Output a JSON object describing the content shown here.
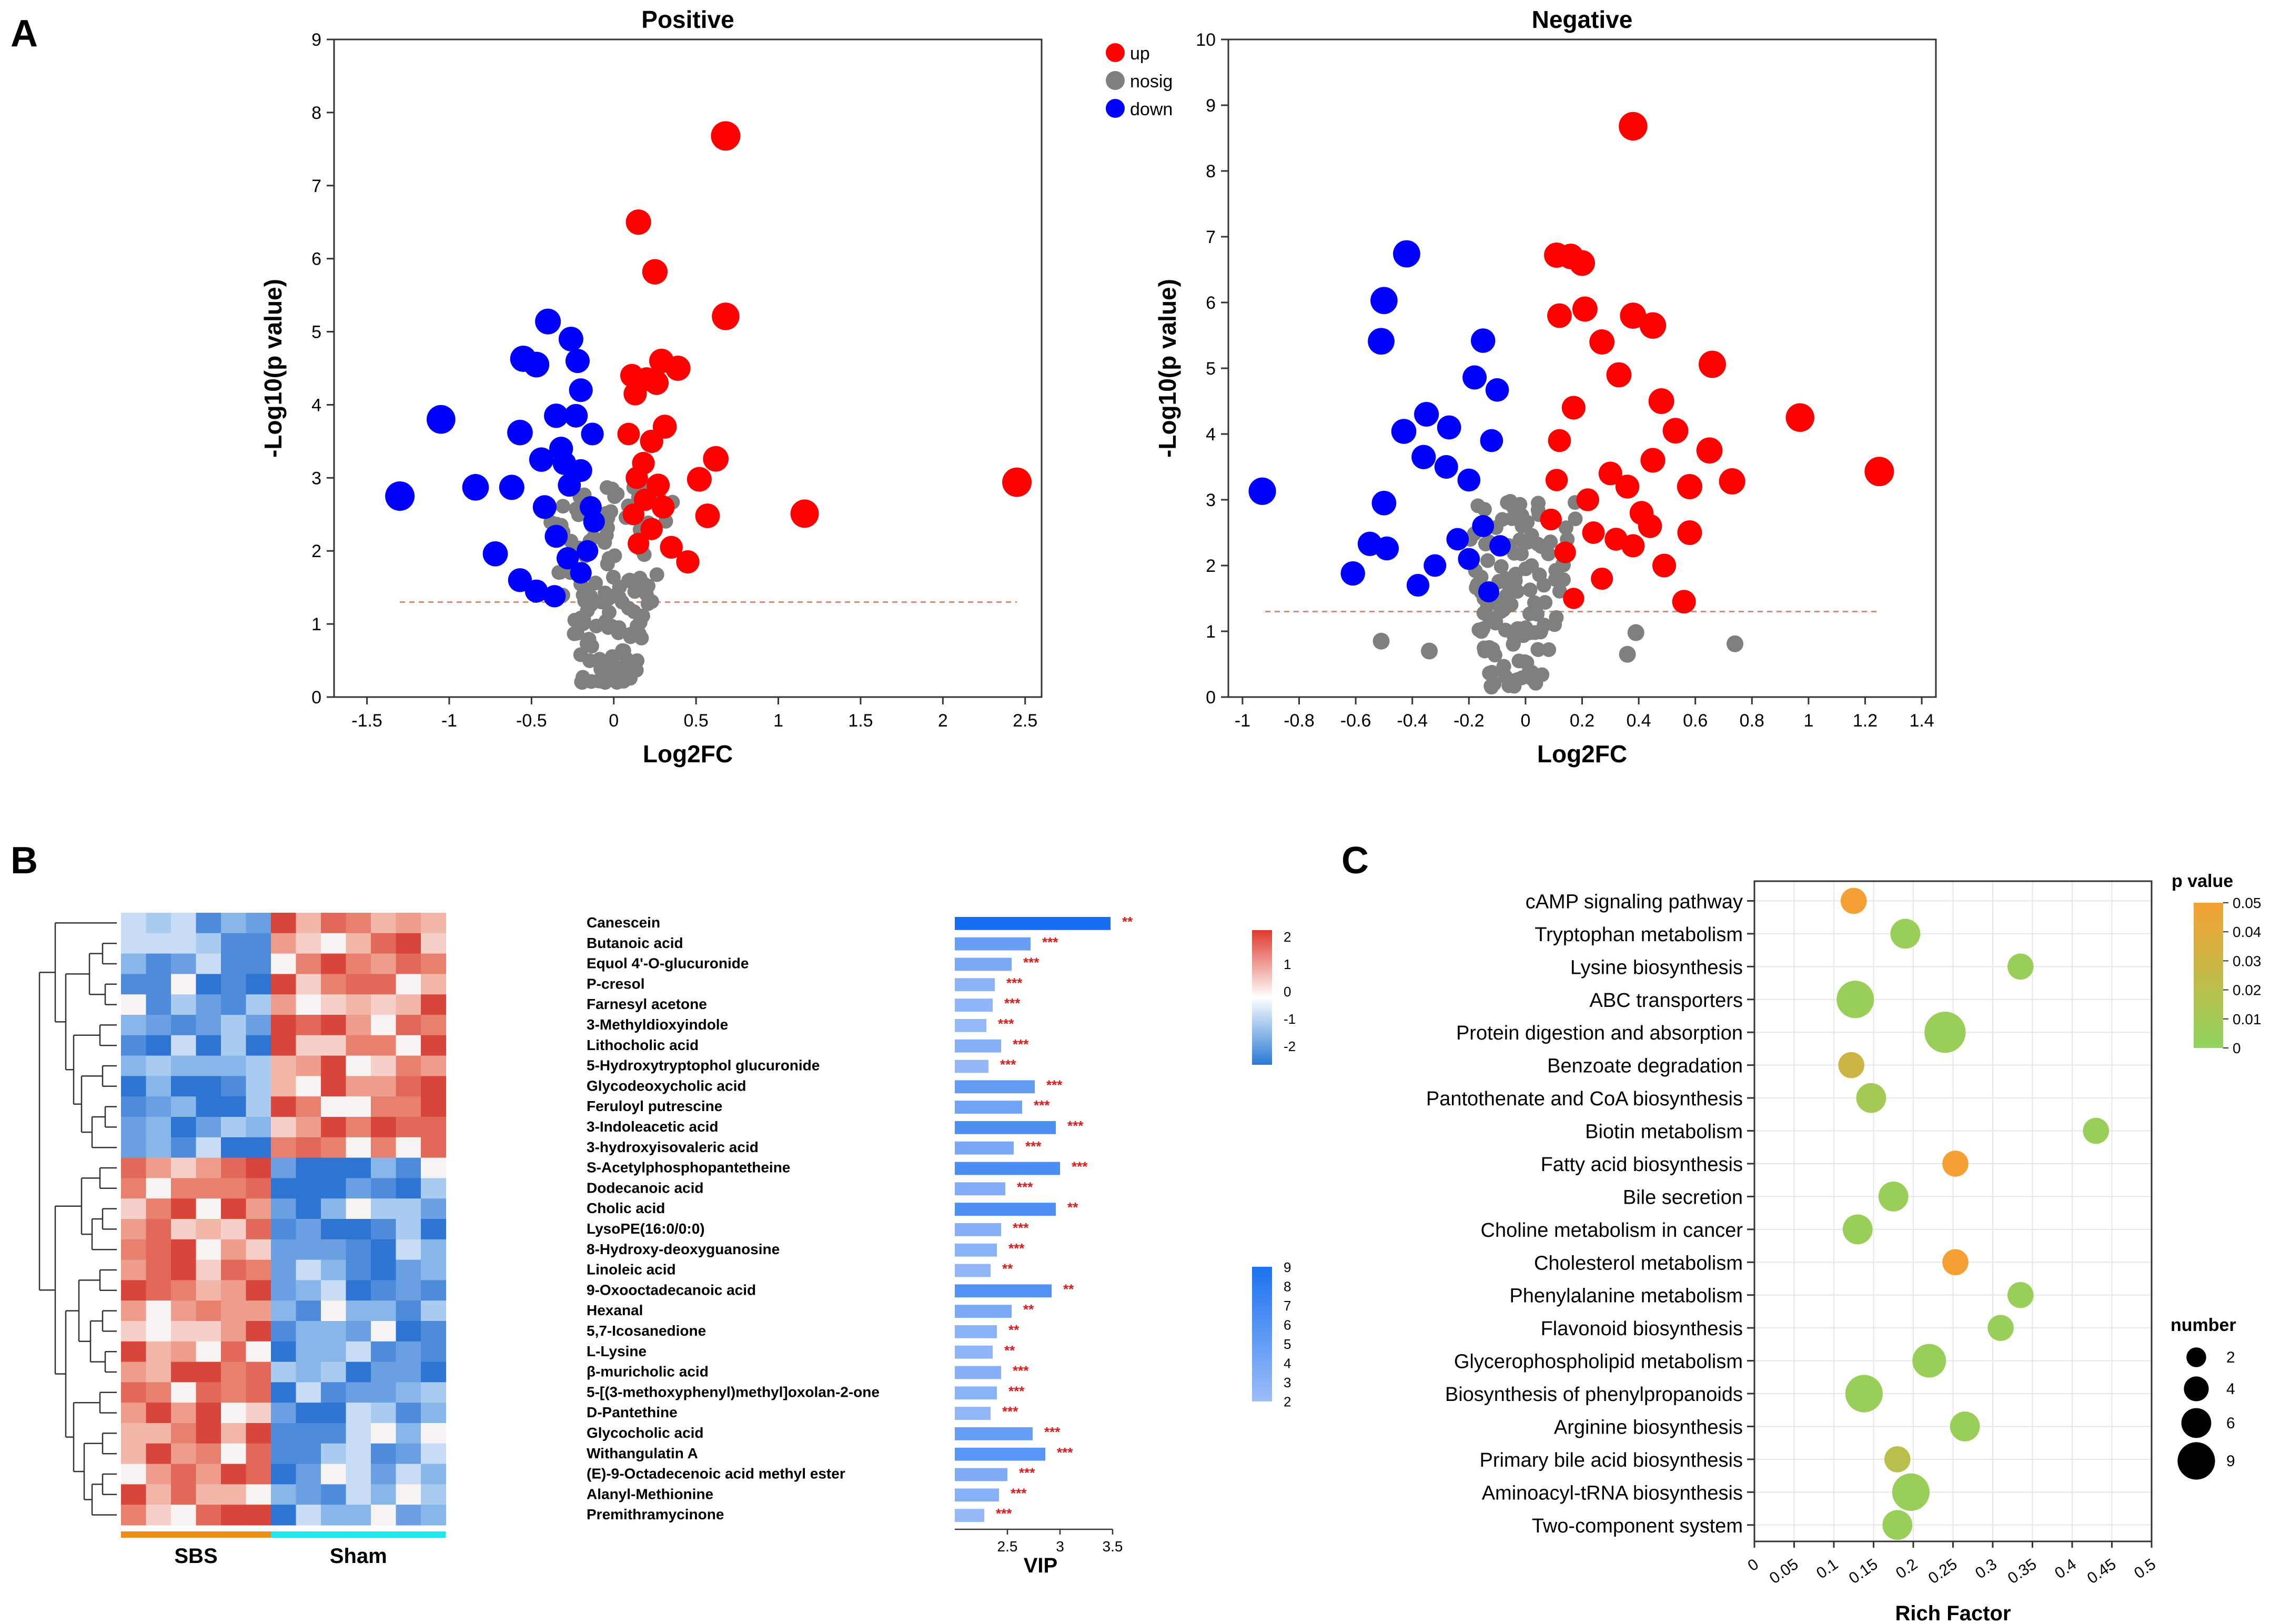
{
  "panel_labels": {
    "a": "A",
    "b": "B",
    "c": "C"
  },
  "legend_volcano": [
    {
      "label": "up",
      "color": "#ff0000"
    },
    {
      "label": "nosig",
      "color": "#7f7f7f"
    },
    {
      "label": "down",
      "color": "#0000ff"
    }
  ],
  "chart_data": [
    {
      "id": "volcano-positive",
      "type": "scatter",
      "title": "Positive",
      "xlabel": "Log2FC",
      "ylabel": "-Log10(p value)",
      "xlim": [
        -1.7,
        2.6
      ],
      "ylim": [
        0,
        9
      ],
      "xticks": [
        -1.5,
        -1,
        -0.5,
        0,
        0.5,
        1,
        1.5,
        2,
        2.5
      ],
      "yticks": [
        0,
        1,
        2,
        3,
        4,
        5,
        6,
        7,
        8,
        9
      ],
      "threshold_y": 1.3,
      "threshold_x_range": [
        -1.3,
        2.45
      ],
      "highlight_points": {
        "up": [
          [
            0.68,
            7.68
          ],
          [
            0.15,
            6.5
          ],
          [
            0.25,
            5.82
          ],
          [
            0.68,
            5.21
          ],
          [
            2.45,
            2.94
          ],
          [
            1.16,
            2.51
          ],
          [
            0.62,
            3.26
          ],
          [
            0.57,
            2.48
          ],
          [
            0.35,
            2.05
          ],
          [
            0.45,
            1.85
          ],
          [
            0.52,
            2.98
          ],
          [
            0.29,
            4.6
          ],
          [
            0.39,
            4.5
          ],
          [
            0.11,
            4.4
          ],
          [
            0.2,
            4.35
          ],
          [
            0.26,
            4.3
          ],
          [
            0.31,
            3.7
          ],
          [
            0.23,
            3.5
          ],
          [
            0.18,
            3.2
          ],
          [
            0.14,
            3.0
          ],
          [
            0.27,
            2.9
          ],
          [
            0.19,
            2.7
          ],
          [
            0.12,
            2.5
          ],
          [
            0.23,
            2.3
          ],
          [
            0.15,
            2.1
          ],
          [
            0.3,
            2.6
          ],
          [
            0.09,
            3.6
          ],
          [
            0.13,
            4.15
          ]
        ],
        "down": [
          [
            -1.3,
            2.75
          ],
          [
            -1.05,
            3.8
          ],
          [
            -0.84,
            2.87
          ],
          [
            -0.72,
            1.96
          ],
          [
            -0.62,
            2.87
          ],
          [
            -0.57,
            3.62
          ],
          [
            -0.55,
            4.63
          ],
          [
            -0.47,
            4.55
          ],
          [
            -0.4,
            5.14
          ],
          [
            -0.57,
            1.6
          ],
          [
            -0.35,
            3.85
          ],
          [
            -0.26,
            4.9
          ],
          [
            -0.22,
            4.6
          ],
          [
            -0.2,
            4.2
          ],
          [
            -0.32,
            3.4
          ],
          [
            -0.27,
            2.9
          ],
          [
            -0.2,
            3.1
          ],
          [
            -0.14,
            2.6
          ],
          [
            -0.35,
            2.2
          ],
          [
            -0.28,
            1.9
          ],
          [
            -0.2,
            1.7
          ],
          [
            -0.16,
            2.0
          ],
          [
            -0.12,
            2.4
          ],
          [
            -0.42,
            2.6
          ],
          [
            -0.47,
            1.45
          ],
          [
            -0.36,
            1.38
          ],
          [
            -0.13,
            3.6
          ],
          [
            -0.23,
            3.85
          ],
          [
            -0.44,
            3.25
          ],
          [
            -0.3,
            3.2
          ]
        ]
      },
      "nosig_cloud": {
        "x_range": [
          -0.45,
          0.38
        ],
        "y_range": [
          0.2,
          2.9
        ],
        "count": 140,
        "seed": 11
      }
    },
    {
      "id": "volcano-negative",
      "type": "scatter",
      "title": "Negative",
      "xlabel": "Log2FC",
      "ylabel": "-Log10(p value)",
      "xlim": [
        -1.05,
        1.45
      ],
      "ylim": [
        0,
        10
      ],
      "xticks": [
        -1,
        -0.8,
        -0.6,
        -0.4,
        -0.2,
        0,
        0.2,
        0.4,
        0.6,
        0.8,
        1,
        1.2,
        1.4
      ],
      "yticks": [
        0,
        1,
        2,
        3,
        4,
        5,
        6,
        7,
        8,
        9,
        10
      ],
      "threshold_y": 1.3,
      "threshold_x_range": [
        -0.92,
        1.25
      ],
      "highlight_points": {
        "up": [
          [
            0.38,
            8.68
          ],
          [
            0.11,
            6.72
          ],
          [
            0.16,
            6.7
          ],
          [
            0.2,
            6.6
          ],
          [
            0.38,
            5.8
          ],
          [
            0.45,
            5.65
          ],
          [
            0.66,
            5.06
          ],
          [
            0.97,
            4.25
          ],
          [
            1.25,
            3.43
          ],
          [
            0.73,
            3.28
          ],
          [
            0.65,
            3.75
          ],
          [
            0.58,
            2.5
          ],
          [
            0.49,
            2.0
          ],
          [
            0.56,
            1.45
          ],
          [
            0.32,
            2.4
          ],
          [
            0.21,
            5.9
          ],
          [
            0.12,
            5.8
          ],
          [
            0.27,
            5.4
          ],
          [
            0.33,
            4.9
          ],
          [
            0.48,
            4.5
          ],
          [
            0.53,
            4.05
          ],
          [
            0.45,
            3.6
          ],
          [
            0.36,
            3.2
          ],
          [
            0.3,
            3.4
          ],
          [
            0.41,
            2.8
          ],
          [
            0.24,
            2.5
          ],
          [
            0.14,
            2.2
          ],
          [
            0.22,
            3.0
          ],
          [
            0.12,
            3.9
          ],
          [
            0.17,
            4.4
          ],
          [
            0.38,
            2.3
          ],
          [
            0.27,
            1.8
          ],
          [
            0.17,
            1.5
          ],
          [
            0.11,
            3.3
          ],
          [
            0.09,
            2.7
          ],
          [
            0.58,
            3.2
          ],
          [
            0.44,
            2.6
          ]
        ],
        "down": [
          [
            -0.93,
            3.13
          ],
          [
            -0.42,
            6.74
          ],
          [
            -0.5,
            6.03
          ],
          [
            -0.51,
            5.41
          ],
          [
            -0.15,
            5.42
          ],
          [
            -0.18,
            4.86
          ],
          [
            -0.1,
            4.67
          ],
          [
            -0.43,
            4.04
          ],
          [
            -0.35,
            4.3
          ],
          [
            -0.27,
            4.1
          ],
          [
            -0.5,
            2.95
          ],
          [
            -0.55,
            2.33
          ],
          [
            -0.49,
            2.26
          ],
          [
            -0.61,
            1.88
          ],
          [
            -0.38,
            1.7
          ],
          [
            -0.13,
            1.6
          ],
          [
            -0.2,
            2.1
          ],
          [
            -0.15,
            2.6
          ],
          [
            -0.28,
            3.5
          ],
          [
            -0.2,
            3.3
          ],
          [
            -0.24,
            2.4
          ],
          [
            -0.09,
            2.3
          ],
          [
            -0.32,
            2.0
          ],
          [
            -0.12,
            3.9
          ],
          [
            -0.36,
            3.65
          ]
        ]
      },
      "nosig_cloud": {
        "x_range": [
          -0.27,
          0.2
        ],
        "y_range": [
          0.15,
          3.0
        ],
        "count": 130,
        "seed": 23
      },
      "outlier_nosig": [
        [
          -0.51,
          0.85
        ],
        [
          0.74,
          0.81
        ],
        [
          0.39,
          0.98
        ],
        [
          0.36,
          0.65
        ],
        [
          -0.34,
          0.7
        ]
      ]
    },
    {
      "id": "heatmap-vip",
      "type": "heatmap",
      "group_labels": [
        "SBS",
        "Sham"
      ],
      "group_colors": [
        "#ee8c1a",
        "#1fe8ec"
      ],
      "rows": [
        {
          "name": "Canescein",
          "vip": 3.48,
          "sig": "**"
        },
        {
          "name": "Butanoic acid",
          "vip": 2.72,
          "sig": "***"
        },
        {
          "name": "Equol 4'-O-glucuronide",
          "vip": 2.54,
          "sig": "***"
        },
        {
          "name": "P-cresol",
          "vip": 2.38,
          "sig": "***"
        },
        {
          "name": "Farnesyl acetone",
          "vip": 2.36,
          "sig": "***"
        },
        {
          "name": "3-Methyldioxyindole",
          "vip": 2.3,
          "sig": "***"
        },
        {
          "name": "Lithocholic acid",
          "vip": 2.44,
          "sig": "***"
        },
        {
          "name": "5-Hydroxytryptophol glucuronide",
          "vip": 2.32,
          "sig": "***"
        },
        {
          "name": "Glycodeoxycholic acid",
          "vip": 2.76,
          "sig": "***"
        },
        {
          "name": "Feruloyl putrescine",
          "vip": 2.64,
          "sig": "***"
        },
        {
          "name": "3-Indoleacetic acid",
          "vip": 2.96,
          "sig": "***"
        },
        {
          "name": "3-hydroxyisovaleric acid",
          "vip": 2.56,
          "sig": "***"
        },
        {
          "name": "S-Acetylphosphopantetheine",
          "vip": 3.0,
          "sig": "***"
        },
        {
          "name": "Dodecanoic acid",
          "vip": 2.48,
          "sig": "***"
        },
        {
          "name": "Cholic acid",
          "vip": 2.96,
          "sig": "**"
        },
        {
          "name": "LysoPE(16:0/0:0)",
          "vip": 2.44,
          "sig": "***"
        },
        {
          "name": "8-Hydroxy-deoxyguanosine",
          "vip": 2.4,
          "sig": "***"
        },
        {
          "name": "Linoleic acid",
          "vip": 2.34,
          "sig": "**"
        },
        {
          "name": "9-Oxooctadecanoic acid",
          "vip": 2.92,
          "sig": "**"
        },
        {
          "name": "Hexanal",
          "vip": 2.54,
          "sig": "**"
        },
        {
          "name": "5,7-Icosanedione",
          "vip": 2.4,
          "sig": "**"
        },
        {
          "name": "L-Lysine",
          "vip": 2.36,
          "sig": "**"
        },
        {
          "name": "β-muricholic acid",
          "vip": 2.44,
          "sig": "***"
        },
        {
          "name": "5-[(3-methoxyphenyl)methyl]oxolan-2-one",
          "vip": 2.4,
          "sig": "***"
        },
        {
          "name": "D-Pantethine",
          "vip": 2.34,
          "sig": "***"
        },
        {
          "name": "Glycocholic acid",
          "vip": 2.74,
          "sig": "***"
        },
        {
          "name": "Withangulatin A",
          "vip": 2.86,
          "sig": "***"
        },
        {
          "name": "(E)-9-Octadecenoic acid methyl ester",
          "vip": 2.5,
          "sig": "***"
        },
        {
          "name": "Alanyl-Methionine",
          "vip": 2.42,
          "sig": "***"
        },
        {
          "name": "Premithramycinone",
          "vip": 2.28,
          "sig": "***"
        }
      ],
      "vip_axis": {
        "label": "VIP",
        "ticks": [
          2.5,
          3,
          3.5
        ],
        "range": [
          2.0,
          3.5
        ]
      },
      "zscore_colorbar": {
        "ticks": [
          "2",
          "1",
          "0",
          "-1",
          "-2"
        ]
      },
      "vip_colorbar": {
        "ticks": [
          "9",
          "8",
          "7",
          "6",
          "5",
          "4",
          "3",
          "2"
        ]
      }
    },
    {
      "id": "kegg-bubble",
      "type": "scatter",
      "xlabel": "Rich Factor",
      "xlim": [
        0,
        0.5
      ],
      "xticks": [
        "0",
        "0.05",
        "0.1",
        "0.15",
        "0.2",
        "0.25",
        "0.3",
        "0.35",
        "0.4",
        "0.45",
        "0.5"
      ],
      "legend_p_title": "p value",
      "legend_p_ticks": [
        "0.05",
        "0.04",
        "0.03",
        "0.02",
        "0.01",
        "0"
      ],
      "legend_size_title": "number",
      "legend_size_ticks": [
        "2",
        "4",
        "6",
        "9"
      ],
      "pathways": [
        {
          "name": "cAMP signaling pathway",
          "rich": 0.125,
          "p": 0.05,
          "n": 3
        },
        {
          "name": "Tryptophan metabolism",
          "rich": 0.19,
          "p": 0.005,
          "n": 4
        },
        {
          "name": "Lysine biosynthesis",
          "rich": 0.335,
          "p": 0.005,
          "n": 3
        },
        {
          "name": "ABC transporters",
          "rich": 0.127,
          "p": 0.005,
          "n": 6
        },
        {
          "name": "Protein digestion and absorption",
          "rich": 0.24,
          "p": 0.005,
          "n": 7
        },
        {
          "name": "Benzoate degradation",
          "rich": 0.122,
          "p": 0.03,
          "n": 3
        },
        {
          "name": "Pantothenate and CoA biosynthesis",
          "rich": 0.147,
          "p": 0.01,
          "n": 4
        },
        {
          "name": "Biotin metabolism",
          "rich": 0.43,
          "p": 0.005,
          "n": 3
        },
        {
          "name": "Fatty acid biosynthesis",
          "rich": 0.253,
          "p": 0.05,
          "n": 3
        },
        {
          "name": "Bile secretion",
          "rich": 0.175,
          "p": 0.005,
          "n": 4
        },
        {
          "name": "Choline metabolism in cancer",
          "rich": 0.13,
          "p": 0.005,
          "n": 4
        },
        {
          "name": "Cholesterol metabolism",
          "rich": 0.253,
          "p": 0.05,
          "n": 3
        },
        {
          "name": "Phenylalanine metabolism",
          "rich": 0.335,
          "p": 0.005,
          "n": 3
        },
        {
          "name": "Flavonoid biosynthesis",
          "rich": 0.31,
          "p": 0.005,
          "n": 3
        },
        {
          "name": "Glycerophospholipid metabolism",
          "rich": 0.22,
          "p": 0.005,
          "n": 5
        },
        {
          "name": "Biosynthesis of phenylpropanoids",
          "rich": 0.138,
          "p": 0.005,
          "n": 6
        },
        {
          "name": "Arginine biosynthesis",
          "rich": 0.265,
          "p": 0.005,
          "n": 4
        },
        {
          "name": "Primary bile acid biosynthesis",
          "rich": 0.18,
          "p": 0.02,
          "n": 3
        },
        {
          "name": "Aminoacyl-tRNA biosynthesis",
          "rich": 0.197,
          "p": 0.005,
          "n": 6
        },
        {
          "name": "Two-component system",
          "rich": 0.18,
          "p": 0.005,
          "n": 4
        }
      ]
    }
  ]
}
